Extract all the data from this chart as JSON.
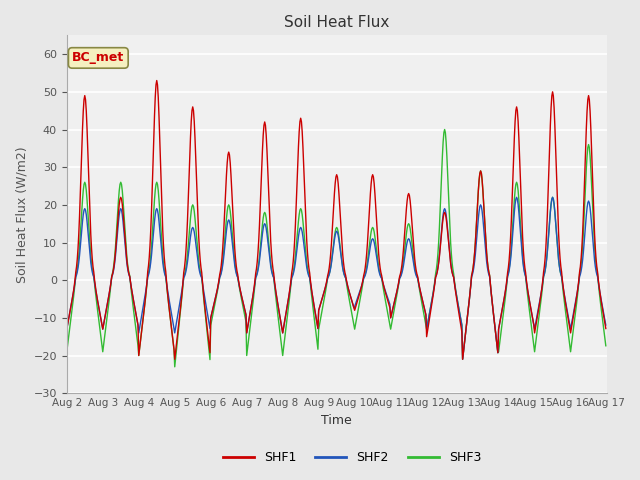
{
  "title": "Soil Heat Flux",
  "xlabel": "Time",
  "ylabel": "Soil Heat Flux (W/m2)",
  "ylim": [
    -30,
    65
  ],
  "yticks": [
    -30,
    -20,
    -10,
    0,
    10,
    20,
    30,
    40,
    50,
    60
  ],
  "fig_bg_color": "#e8e8e8",
  "plot_bg_color": "#f0f0f0",
  "grid_color": "#ffffff",
  "shf1_color": "#cc0000",
  "shf2_color": "#2255bb",
  "shf3_color": "#33bb33",
  "annotation_text": "BC_met",
  "annotation_fg": "#cc0000",
  "annotation_bg": "#f5f0c0",
  "annotation_border": "#888844",
  "legend_entries": [
    "SHF1",
    "SHF2",
    "SHF3"
  ],
  "num_days": 15,
  "shf1_day_peaks": [
    49,
    22,
    53,
    46,
    34,
    42,
    43,
    28,
    28,
    23,
    18,
    29,
    46,
    50,
    49,
    50
  ],
  "shf2_day_peaks": [
    19,
    19,
    19,
    14,
    16,
    15,
    14,
    13,
    11,
    11,
    19,
    20,
    22,
    22,
    21,
    21
  ],
  "shf3_day_peaks": [
    26,
    26,
    26,
    20,
    20,
    18,
    19,
    14,
    14,
    15,
    40,
    29,
    26,
    22,
    36,
    36
  ],
  "shf1_night_troughs": [
    -13,
    -13,
    -20,
    -21,
    -10,
    -14,
    -14,
    -8,
    -8,
    -10,
    -15,
    -21,
    -13,
    -14,
    -14,
    -14
  ],
  "shf2_night_troughs": [
    -13,
    -13,
    -14,
    -14,
    -10,
    -14,
    -14,
    -8,
    -7,
    -10,
    -13,
    -21,
    -13,
    -13,
    -13,
    -13
  ],
  "shf3_night_troughs": [
    -19,
    -19,
    -20,
    -23,
    -12,
    -20,
    -20,
    -13,
    -13,
    -13,
    -13,
    -21,
    -19,
    -19,
    -19,
    -19
  ]
}
